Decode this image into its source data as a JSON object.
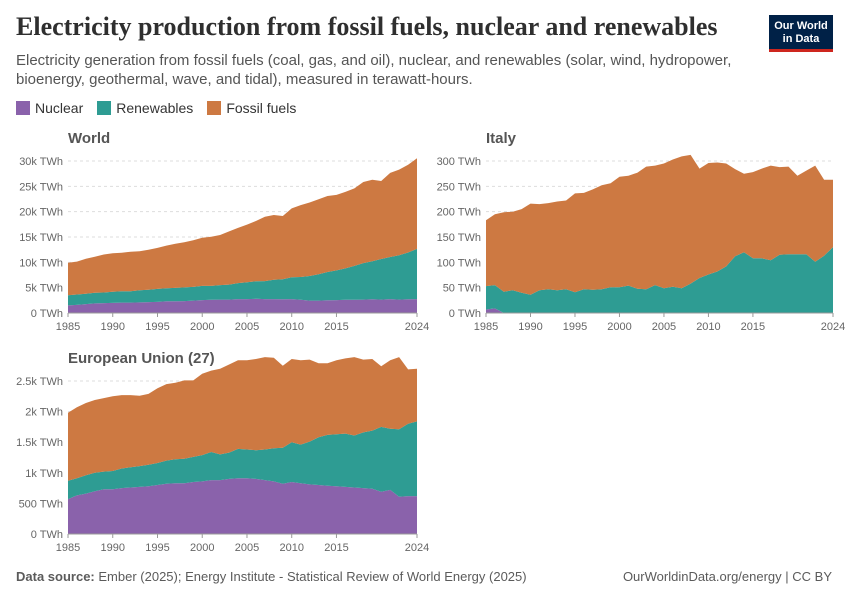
{
  "header": {
    "title": "Electricity production from fossil fuels, nuclear and renewables",
    "subtitle": "Electricity generation from fossil fuels (coal, gas, and oil), nuclear, and renewables (solar, wind, hydropower, bioenergy, geothermal, wave, and tidal), measured in terawatt-hours.",
    "logo_line1": "Our World",
    "logo_line2": "in Data"
  },
  "colors": {
    "nuclear": "#8a62ab",
    "renewables": "#2e9c93",
    "fossil": "#cd7942",
    "logo_bg": "#002147",
    "logo_accent": "#ce261e"
  },
  "legend": [
    {
      "label": "Nuclear",
      "color": "#8a62ab"
    },
    {
      "label": "Renewables",
      "color": "#2e9c93"
    },
    {
      "label": "Fossil fuels",
      "color": "#cd7942"
    }
  ],
  "footer": {
    "source_label": "Data source:",
    "source_text": "Ember (2025); Energy Institute - Statistical Review of World Energy (2025)",
    "credit": "OurWorldinData.org/energy | CC BY"
  },
  "chart_data": [
    {
      "type": "area",
      "stacked": true,
      "title": "World",
      "x": [
        1985,
        1986,
        1987,
        1988,
        1989,
        1990,
        1991,
        1992,
        1993,
        1994,
        1995,
        1996,
        1997,
        1998,
        1999,
        2000,
        2001,
        2002,
        2003,
        2004,
        2005,
        2006,
        2007,
        2008,
        2009,
        2010,
        2011,
        2012,
        2013,
        2014,
        2015,
        2016,
        2017,
        2018,
        2019,
        2020,
        2021,
        2022,
        2023,
        2024
      ],
      "x_ticks": [
        1985,
        1990,
        1995,
        2000,
        2005,
        2010,
        2015,
        2024
      ],
      "y_ticks": [
        "0 TWh",
        "5k TWh",
        "10k TWh",
        "15k TWh",
        "20k TWh",
        "25k TWh",
        "30k TWh"
      ],
      "ylim": [
        0,
        30000
      ],
      "series": [
        {
          "name": "Nuclear",
          "values": [
            1500,
            1600,
            1750,
            1900,
            1950,
            2000,
            2050,
            2050,
            2100,
            2150,
            2200,
            2300,
            2300,
            2350,
            2450,
            2550,
            2600,
            2650,
            2650,
            2750,
            2750,
            2800,
            2750,
            2750,
            2700,
            2750,
            2600,
            2450,
            2450,
            2500,
            2550,
            2600,
            2600,
            2650,
            2700,
            2650,
            2750,
            2650,
            2700,
            2750
          ]
        },
        {
          "name": "Renewables",
          "values": [
            2000,
            2050,
            2050,
            2100,
            2100,
            2200,
            2250,
            2250,
            2400,
            2450,
            2550,
            2600,
            2650,
            2700,
            2700,
            2800,
            2750,
            2850,
            2950,
            3150,
            3300,
            3450,
            3550,
            3800,
            3950,
            4300,
            4500,
            4850,
            5200,
            5600,
            5850,
            6200,
            6700,
            7200,
            7500,
            8000,
            8300,
            8750,
            9250,
            9900
          ]
        },
        {
          "name": "Fossil fuels",
          "values": [
            6400,
            6500,
            6900,
            7100,
            7500,
            7600,
            7600,
            7800,
            7700,
            7900,
            8100,
            8400,
            8700,
            8900,
            9200,
            9500,
            9700,
            9900,
            10500,
            10900,
            11400,
            11900,
            12700,
            12800,
            12500,
            13600,
            14200,
            14500,
            14800,
            15000,
            14900,
            15100,
            15300,
            16000,
            16100,
            15400,
            16600,
            16900,
            17300,
            17900
          ]
        }
      ]
    },
    {
      "type": "area",
      "stacked": true,
      "title": "Italy",
      "x": [
        1985,
        1986,
        1987,
        1988,
        1989,
        1990,
        1991,
        1992,
        1993,
        1994,
        1995,
        1996,
        1997,
        1998,
        1999,
        2000,
        2001,
        2002,
        2003,
        2004,
        2005,
        2006,
        2007,
        2008,
        2009,
        2010,
        2011,
        2012,
        2013,
        2014,
        2015,
        2016,
        2017,
        2018,
        2019,
        2020,
        2021,
        2022,
        2023,
        2024
      ],
      "x_ticks": [
        1985,
        1990,
        1995,
        2000,
        2005,
        2010,
        2015,
        2024
      ],
      "y_ticks": [
        "0 TWh",
        "50 TWh",
        "100 TWh",
        "150 TWh",
        "200 TWh",
        "250 TWh",
        "300 TWh"
      ],
      "ylim": [
        0,
        300
      ],
      "series": [
        {
          "name": "Nuclear",
          "values": [
            7,
            9,
            0,
            0,
            0,
            0,
            0,
            0,
            0,
            0,
            0,
            0,
            0,
            0,
            0,
            0,
            0,
            0,
            0,
            0,
            0,
            0,
            0,
            0,
            0,
            0,
            0,
            0,
            0,
            0,
            0,
            0,
            0,
            0,
            0,
            0,
            0,
            0,
            0,
            0
          ]
        },
        {
          "name": "Renewables",
          "values": [
            46,
            46,
            42,
            45,
            40,
            36,
            45,
            47,
            45,
            47,
            41,
            47,
            46,
            47,
            51,
            51,
            54,
            48,
            47,
            55,
            49,
            52,
            49,
            58,
            69,
            76,
            82,
            92,
            112,
            120,
            108,
            108,
            104,
            115,
            116,
            116,
            116,
            101,
            113,
            130
          ]
        },
        {
          "name": "Fossil fuels",
          "values": [
            130,
            140,
            157,
            155,
            165,
            180,
            170,
            170,
            175,
            175,
            195,
            190,
            198,
            205,
            205,
            218,
            217,
            229,
            242,
            236,
            246,
            251,
            260,
            254,
            216,
            220,
            215,
            203,
            172,
            155,
            170,
            177,
            187,
            173,
            173,
            155,
            165,
            190,
            150,
            133
          ]
        }
      ]
    },
    {
      "type": "area",
      "stacked": true,
      "title": "European Union (27)",
      "x": [
        1985,
        1986,
        1987,
        1988,
        1989,
        1990,
        1991,
        1992,
        1993,
        1994,
        1995,
        1996,
        1997,
        1998,
        1999,
        2000,
        2001,
        2002,
        2003,
        2004,
        2005,
        2006,
        2007,
        2008,
        2009,
        2010,
        2011,
        2012,
        2013,
        2014,
        2015,
        2016,
        2017,
        2018,
        2019,
        2020,
        2021,
        2022,
        2023,
        2024
      ],
      "x_ticks": [
        1985,
        1990,
        1995,
        2000,
        2005,
        2010,
        2015,
        2024
      ],
      "y_ticks": [
        "0 TWh",
        "500 TWh",
        "1k TWh",
        "1.5k TWh",
        "2k TWh",
        "2.5k TWh"
      ],
      "ylim": [
        0,
        2900
      ],
      "series": [
        {
          "name": "Nuclear",
          "values": [
            570,
            630,
            660,
            700,
            730,
            730,
            750,
            760,
            770,
            780,
            800,
            820,
            830,
            830,
            850,
            860,
            880,
            880,
            900,
            910,
            910,
            900,
            880,
            860,
            820,
            850,
            830,
            810,
            800,
            790,
            780,
            770,
            760,
            750,
            740,
            690,
            720,
            610,
            620,
            620
          ]
        },
        {
          "name": "Renewables",
          "values": [
            300,
            280,
            300,
            300,
            290,
            300,
            320,
            330,
            340,
            350,
            360,
            380,
            390,
            400,
            410,
            430,
            460,
            420,
            430,
            480,
            470,
            470,
            500,
            540,
            590,
            650,
            630,
            700,
            780,
            830,
            850,
            870,
            850,
            910,
            950,
            1060,
            1000,
            1100,
            1180,
            1220
          ]
        },
        {
          "name": "Fossil fuels",
          "values": [
            1110,
            1160,
            1180,
            1190,
            1200,
            1220,
            1200,
            1180,
            1150,
            1160,
            1220,
            1250,
            1250,
            1280,
            1250,
            1330,
            1330,
            1400,
            1440,
            1450,
            1460,
            1490,
            1510,
            1480,
            1340,
            1360,
            1380,
            1340,
            1210,
            1170,
            1210,
            1230,
            1280,
            1190,
            1170,
            990,
            1120,
            1180,
            890,
            860
          ]
        }
      ]
    }
  ]
}
